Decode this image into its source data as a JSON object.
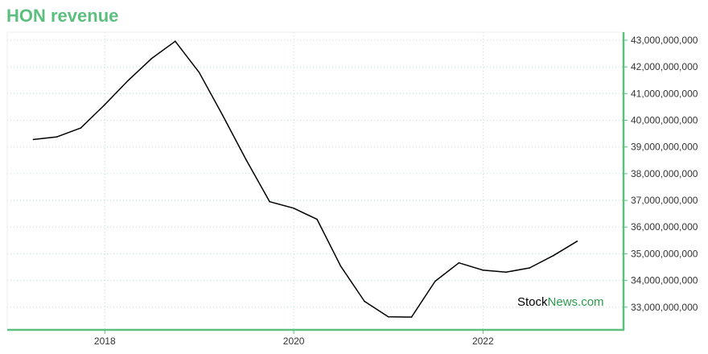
{
  "chart_data": {
    "type": "line",
    "title": "HON revenue",
    "xlabel": "",
    "ylabel": "",
    "x": [
      "2017-03-31",
      "2017-06-30",
      "2017-09-30",
      "2017-12-31",
      "2018-03-31",
      "2018-06-30",
      "2018-09-30",
      "2018-12-31",
      "2019-03-31",
      "2019-06-30",
      "2019-09-30",
      "2019-12-31",
      "2020-03-31",
      "2020-06-30",
      "2020-09-30",
      "2020-12-31",
      "2021-03-31",
      "2021-06-30",
      "2021-09-30",
      "2021-12-31",
      "2022-03-31",
      "2022-06-30",
      "2022-09-30",
      "2022-12-31"
    ],
    "series": [
      {
        "name": "",
        "values": [
          39280000000,
          39380000000,
          39710000000,
          40580000000,
          41480000000,
          42310000000,
          42960000000,
          41800000000,
          40210000000,
          38540000000,
          36950000000,
          36710000000,
          36290000000,
          34540000000,
          33220000000,
          32640000000,
          32630000000,
          33970000000,
          34660000000,
          34390000000,
          34310000000,
          34470000000,
          34930000000,
          35470000000
        ]
      }
    ],
    "x_ticks": [
      "2018",
      "2020",
      "2022"
    ],
    "y_ticks": [
      "33,000,000,000",
      "34,000,000,000",
      "35,000,000,000",
      "36,000,000,000",
      "37,000,000,000",
      "38,000,000,000",
      "39,000,000,000",
      "40,000,000,000",
      "41,000,000,000",
      "42,000,000,000",
      "43,000,000,000"
    ],
    "ylim": [
      32150000000,
      43300000000
    ],
    "xlim": [
      "2016-12-20",
      "2023-06-28"
    ],
    "grid": true,
    "legend": "none",
    "colors": {
      "line": "#000000",
      "axis": "#5dbf7f",
      "grid": "#b9ddd0",
      "title": "#5dbf7f"
    }
  },
  "watermark": {
    "part1": "Stock",
    "part2": "News",
    "part3": ".com"
  }
}
